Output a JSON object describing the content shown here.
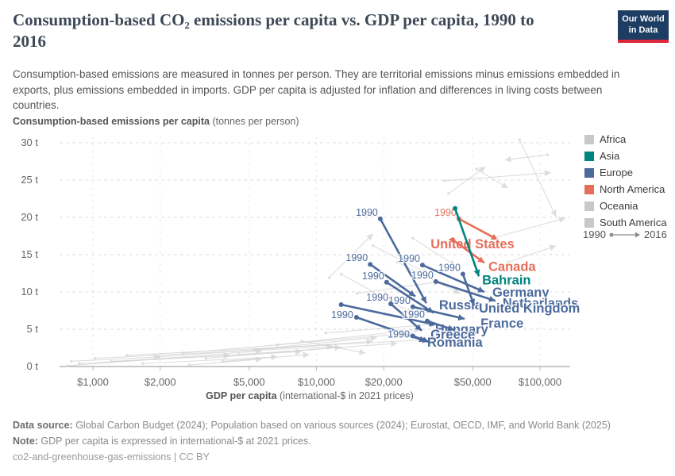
{
  "header": {
    "title": "Consumption-based CO₂ emissions per capita vs. GDP per capita, 1990 to 2016",
    "logo": {
      "line1": "Our World",
      "line2": "in Data",
      "bg_color": "#1d3d63",
      "accent_color": "#e0263c"
    }
  },
  "subtitle": "Consumption-based emissions are measured in tonnes per person. They are territorial emissions minus emissions embedded in exports, plus emissions embedded in imports. GDP per capita is adjusted for inflation and differences in living costs between countries.",
  "legend": {
    "items": [
      {
        "label": "Africa",
        "color": "#c8c8c8"
      },
      {
        "label": "Asia",
        "color": "#00847E"
      },
      {
        "label": "Europe",
        "color": "#4C6A9C"
      },
      {
        "label": "North America",
        "color": "#E56E5A"
      },
      {
        "label": "Oceania",
        "color": "#c8c8c8"
      },
      {
        "label": "South America",
        "color": "#c8c8c8"
      }
    ],
    "start_year_label": "1990",
    "end_year_label": "2016"
  },
  "chart_data": {
    "type": "scatter",
    "title": "Consumption-based CO₂ emissions per capita vs. GDP per capita, 1990 to 2016",
    "start_year": 1990,
    "end_year": 2016,
    "x_axis": {
      "label_bold": "GDP per capita",
      "label_rest": " (international-$ in 2021 prices)",
      "scale": "log",
      "ticks": [
        {
          "label": "$1,000",
          "value": 1000
        },
        {
          "label": "$2,000",
          "value": 2000
        },
        {
          "label": "$5,000",
          "value": 5000
        },
        {
          "label": "$10,000",
          "value": 10000
        },
        {
          "label": "$20,000",
          "value": 20000
        },
        {
          "label": "$50,000",
          "value": 50000
        },
        {
          "label": "$100,000",
          "value": 100000
        }
      ]
    },
    "y_axis": {
      "label_bold": "Consumption-based emissions per capita",
      "label_rest": " (tonnes per person)",
      "range": [
        0,
        30
      ],
      "ticks": [
        {
          "label": "0 t",
          "value": 0
        },
        {
          "label": "5 t",
          "value": 5
        },
        {
          "label": "10 t",
          "value": 10
        },
        {
          "label": "15 t",
          "value": 15
        },
        {
          "label": "20 t",
          "value": 20
        },
        {
          "label": "25 t",
          "value": 25
        },
        {
          "label": "30 t",
          "value": 30
        }
      ]
    },
    "region_colors": {
      "Africa": "#c8c8c8",
      "Asia": "#00847E",
      "Europe": "#4C6A9C",
      "North America": "#E56E5A",
      "Oceania": "#c8c8c8",
      "South America": "#c8c8c8",
      "Other": "#d2d2d2"
    },
    "series": [
      {
        "name": "United States",
        "region": "North America",
        "gdp_1990": 43400,
        "emissions_1990": 19.8,
        "gdp_2016": 64800,
        "emissions_2016": 17.0,
        "labeled": true,
        "year_label": true,
        "label_anchor": "middle",
        "label_offset": [
          -32,
          11
        ],
        "year_label_offset": [
          -3,
          -4
        ]
      },
      {
        "name": "Canada",
        "region": "North America",
        "gdp_1990": 40700,
        "emissions_1990": 17.0,
        "gdp_2016": 56400,
        "emissions_2016": 13.9,
        "labeled": true,
        "year_label": false,
        "label_anchor": "start",
        "label_offset": [
          5,
          10
        ]
      },
      {
        "name": "Bahrain",
        "region": "Asia",
        "gdp_1990": 41700,
        "emissions_1990": 21.2,
        "gdp_2016": 53300,
        "emissions_2016": 12.1,
        "labeled": true,
        "year_label": false,
        "label_anchor": "start",
        "label_offset": [
          4,
          10
        ]
      },
      {
        "name": "Russia",
        "region": "Europe",
        "gdp_1990": 19300,
        "emissions_1990": 19.8,
        "gdp_2016": 31000,
        "emissions_2016": 8.5,
        "labeled": true,
        "year_label": true,
        "label_anchor": "start",
        "label_offset": [
          16,
          8
        ],
        "year_label_offset": [
          -3,
          -4
        ]
      },
      {
        "name": "Germany",
        "region": "Europe",
        "gdp_1990": 29800,
        "emissions_1990": 13.6,
        "gdp_2016": 56400,
        "emissions_2016": 10.0,
        "labeled": true,
        "year_label": true,
        "label_anchor": "start",
        "label_offset": [
          10,
          6
        ],
        "year_label_offset": [
          -3,
          -4
        ]
      },
      {
        "name": "Netherlands",
        "region": "Europe",
        "gdp_1990": 34200,
        "emissions_1990": 11.4,
        "gdp_2016": 63200,
        "emissions_2016": 8.8,
        "labeled": true,
        "year_label": true,
        "label_anchor": "start",
        "label_offset": [
          9,
          8
        ],
        "year_label_offset": [
          -3,
          -4
        ]
      },
      {
        "name": "United Kingdom",
        "region": "Europe",
        "gdp_1990": 45200,
        "emissions_1990": 12.4,
        "gdp_2016": 50700,
        "emissions_2016": 8.2,
        "labeled": true,
        "year_label": true,
        "label_anchor": "start",
        "label_offset": [
          6,
          9
        ],
        "year_label_offset": [
          -3,
          -4
        ]
      },
      {
        "name": "France",
        "region": "Europe",
        "gdp_1990": 27000,
        "emissions_1990": 8.0,
        "gdp_2016": 46000,
        "emissions_2016": 6.4,
        "labeled": true,
        "year_label": true,
        "label_anchor": "start",
        "label_offset": [
          20,
          11
        ],
        "year_label_offset": [
          -3,
          -4
        ]
      },
      {
        "name": "Hungary",
        "region": "Europe",
        "gdp_1990": 12900,
        "emissions_1990": 8.3,
        "gdp_2016": 34200,
        "emissions_2016": 5.6,
        "labeled": true,
        "year_label": false,
        "label_anchor": "start",
        "label_offset": [
          -1,
          11
        ]
      },
      {
        "name": "Greece",
        "region": "Europe",
        "gdp_1990": 21500,
        "emissions_1990": 8.4,
        "gdp_2016": 29600,
        "emissions_2016": 4.8,
        "labeled": true,
        "year_label": true,
        "label_anchor": "start",
        "label_offset": [
          11,
          10
        ],
        "year_label_offset": [
          -3,
          -4
        ]
      },
      {
        "name": "Romania",
        "region": "Europe",
        "gdp_1990": 15100,
        "emissions_1990": 6.6,
        "gdp_2016": 30800,
        "emissions_2016": 3.4,
        "labeled": true,
        "year_label": true,
        "label_anchor": "start",
        "label_offset": [
          2,
          7
        ],
        "year_label_offset": [
          -4,
          1
        ]
      },
      {
        "name": "",
        "region": "Europe",
        "gdp_1990": 17400,
        "emissions_1990": 13.7,
        "gdp_2016": 27700,
        "emissions_2016": 9.4,
        "labeled": false,
        "year_label": true,
        "year_label_offset": [
          -3,
          -4
        ]
      },
      {
        "name": "",
        "region": "Europe",
        "gdp_1990": 20600,
        "emissions_1990": 11.3,
        "gdp_2016": 33400,
        "emissions_2016": 7.2,
        "labeled": false,
        "year_label": true,
        "year_label_offset": [
          -3,
          -4
        ]
      },
      {
        "name": "",
        "region": "Europe",
        "gdp_1990": 31300,
        "emissions_1990": 6.1,
        "gdp_2016": 41300,
        "emissions_2016": 4.9,
        "labeled": false,
        "year_label": true,
        "year_label_offset": [
          -3,
          -4
        ]
      },
      {
        "name": "",
        "region": "Europe",
        "gdp_1990": 27000,
        "emissions_1990": 4.1,
        "gdp_2016": 31800,
        "emissions_2016": 3.3,
        "labeled": false,
        "year_label": true,
        "year_label_offset": [
          -4,
          2
        ]
      }
    ],
    "background_arrows": [
      [
        39000,
        23.2,
        57000,
        26.8
      ],
      [
        108000,
        28.4,
        69500,
        27.7
      ],
      [
        81000,
        30.4,
        118000,
        20.1
      ],
      [
        37500,
        24.9,
        112000,
        26.0
      ],
      [
        52000,
        26.5,
        72000,
        23.9
      ],
      [
        61000,
        17.2,
        130000,
        19.9
      ],
      [
        72000,
        14.0,
        118000,
        16.2
      ],
      [
        17900,
        16.2,
        31700,
        12.4
      ],
      [
        12900,
        12.4,
        27000,
        7.1
      ],
      [
        23000,
        14.0,
        44000,
        9.8
      ],
      [
        15200,
        9.8,
        35900,
        11.4
      ],
      [
        11400,
        11.9,
        17900,
        17.8
      ],
      [
        27000,
        17.2,
        42000,
        13.5
      ],
      [
        770,
        0.1,
        5700,
        2.1
      ],
      [
        1020,
        1.1,
        11900,
        2.7
      ],
      [
        1420,
        1.5,
        31700,
        3.6
      ],
      [
        870,
        0.4,
        4100,
        1.5
      ],
      [
        1210,
        0.7,
        8600,
        2.0
      ],
      [
        1970,
        1.3,
        17900,
        3.4
      ],
      [
        2520,
        1.8,
        27000,
        4.5
      ],
      [
        3200,
        1.1,
        12900,
        2.6
      ],
      [
        4500,
        1.6,
        23000,
        3.1
      ],
      [
        1670,
        0.4,
        6700,
        1.3
      ],
      [
        5300,
        2.3,
        18700,
        3.9
      ],
      [
        6700,
        2.9,
        29200,
        5.0
      ],
      [
        3800,
        0.7,
        9300,
        1.6
      ],
      [
        2700,
        0.2,
        5700,
        1.0
      ],
      [
        8600,
        3.4,
        16600,
        1.8
      ],
      [
        11000,
        4.5,
        34500,
        5.7
      ],
      [
        800,
        0.7,
        2000,
        1.3
      ]
    ]
  },
  "footer": {
    "source_label": "Data source:",
    "source_text": " Global Carbon Budget (2024); Population based on various sources (2024); Eurostat, OECD, IMF, and World Bank (2025)",
    "note_label": "Note:",
    "note_text": " GDP per capita is expressed in international-$ at 2021 prices.",
    "credit": "co2-and-greenhouse-gas-emissions | CC BY"
  }
}
